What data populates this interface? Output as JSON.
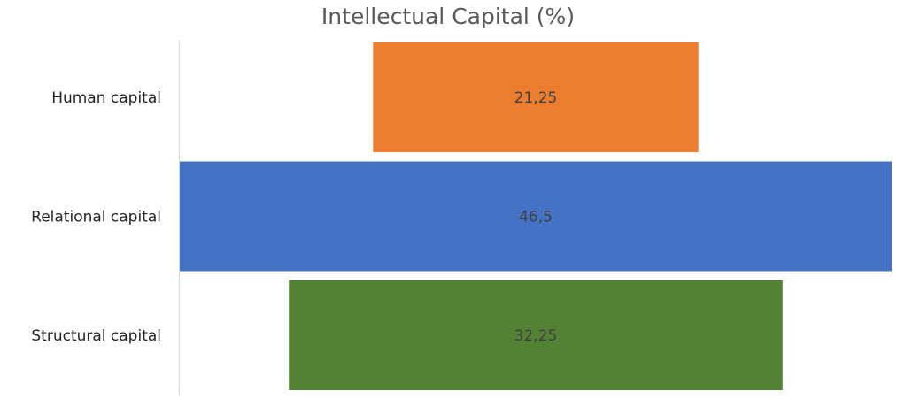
{
  "chart_data": {
    "type": "bar",
    "orientation": "horizontal",
    "style": "funnel",
    "title": "Intellectual Capital (%)",
    "categories": [
      "Human capital",
      "Relational capital",
      "Structural capital"
    ],
    "values": [
      21.25,
      46.5,
      32.25
    ],
    "data_labels": [
      "21,25",
      "46,5",
      "32,25"
    ],
    "colors": [
      "#ED7D31",
      "#4472C4",
      "#548235"
    ],
    "xlim": [
      0,
      46.5
    ],
    "grid": false,
    "legend": "none"
  }
}
